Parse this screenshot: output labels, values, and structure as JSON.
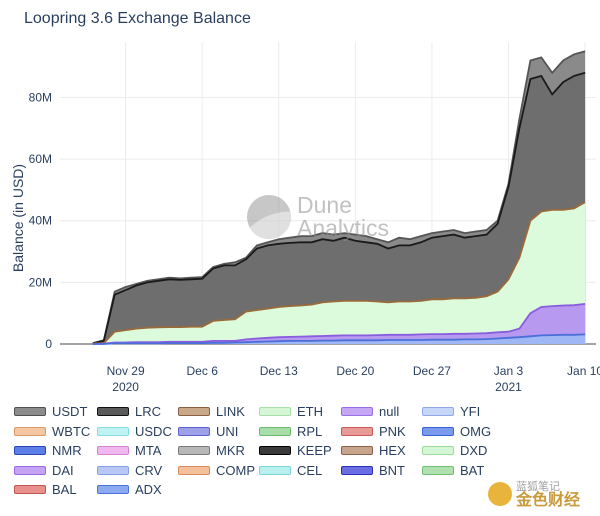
{
  "title": "Loopring 3.6 Exchange Balance",
  "watermarks": {
    "dune_line1": "Dune",
    "dune_line2": "Analytics",
    "cn_line1": "蓝狐笔记",
    "cn_line2": "金色财经"
  },
  "chart_data": {
    "type": "area",
    "title": "Loopring 3.6 Exchange Balance",
    "ylabel": "Balance (in USD)",
    "xlabel": "",
    "y_unit": "M",
    "ylim": [
      0,
      98
    ],
    "xlim": [
      "2020-11-23",
      "2021-01-11"
    ],
    "x_ticks": [
      {
        "date": "2020-11-29",
        "line1": "Nov 29",
        "line2": "2020"
      },
      {
        "date": "2020-12-06",
        "line1": "Dec 6",
        "line2": ""
      },
      {
        "date": "2020-12-13",
        "line1": "Dec 13",
        "line2": ""
      },
      {
        "date": "2020-12-20",
        "line1": "Dec 20",
        "line2": ""
      },
      {
        "date": "2020-12-27",
        "line1": "Dec 27",
        "line2": ""
      },
      {
        "date": "2021-01-03",
        "line1": "Jan 3",
        "line2": "2021"
      },
      {
        "date": "2021-01-10",
        "line1": "Jan 10",
        "line2": ""
      }
    ],
    "y_ticks": [
      {
        "value": 0,
        "label": "0"
      },
      {
        "value": 20,
        "label": "20M"
      },
      {
        "value": 40,
        "label": "40M"
      },
      {
        "value": 60,
        "label": "60M"
      },
      {
        "value": 80,
        "label": "80M"
      }
    ],
    "x": [
      "2020-11-26",
      "2020-11-27",
      "2020-11-28",
      "2020-11-29",
      "2020-11-30",
      "2020-12-01",
      "2020-12-02",
      "2020-12-03",
      "2020-12-04",
      "2020-12-05",
      "2020-12-06",
      "2020-12-07",
      "2020-12-08",
      "2020-12-09",
      "2020-12-10",
      "2020-12-11",
      "2020-12-12",
      "2020-12-13",
      "2020-12-14",
      "2020-12-15",
      "2020-12-16",
      "2020-12-17",
      "2020-12-18",
      "2020-12-19",
      "2020-12-20",
      "2020-12-21",
      "2020-12-22",
      "2020-12-23",
      "2020-12-24",
      "2020-12-25",
      "2020-12-26",
      "2020-12-27",
      "2020-12-28",
      "2020-12-29",
      "2020-12-30",
      "2020-12-31",
      "2021-01-01",
      "2021-01-02",
      "2021-01-03",
      "2021-01-04",
      "2021-01-05",
      "2021-01-06",
      "2021-01-07",
      "2021-01-08",
      "2021-01-09",
      "2021-01-10"
    ],
    "series": [
      {
        "name": "USDT",
        "color": "#8a8a8a",
        "line": "#555555",
        "values": [
          0.3,
          1.2,
          17,
          18.5,
          19.5,
          20.5,
          21,
          21.5,
          21.3,
          21.5,
          21.7,
          25,
          26,
          26.5,
          28,
          32,
          33,
          34,
          34.5,
          35,
          35,
          36,
          35.5,
          36,
          35.5,
          35,
          34,
          33,
          34.5,
          34,
          35,
          36,
          36.5,
          37,
          36,
          36.5,
          37,
          40,
          52,
          73,
          92,
          93,
          88,
          92,
          94,
          95
        ]
      },
      {
        "name": "LRC",
        "color": "#6e6e6e",
        "line": "#1a1a1a",
        "values": [
          0.3,
          1,
          16,
          17.5,
          19,
          20,
          20.5,
          21,
          20.8,
          21,
          21.2,
          24.5,
          25.5,
          25.5,
          27.5,
          31,
          32,
          32.5,
          32.8,
          33,
          33,
          34,
          33.5,
          34.5,
          33.5,
          33,
          32.5,
          31,
          32,
          32,
          33,
          34.5,
          35,
          35.5,
          34.5,
          35,
          35.5,
          39,
          51,
          70,
          86,
          87,
          81,
          85,
          87,
          88
        ]
      },
      {
        "name": "ETH",
        "color": "#dcfadc",
        "line": "#9a6a3a",
        "values": [
          0.2,
          0.3,
          4,
          4.5,
          5,
          5.3,
          5.4,
          5.5,
          5.5,
          5.6,
          5.6,
          7.5,
          7.8,
          8,
          10.5,
          11,
          11.5,
          12,
          12.3,
          12.5,
          12.8,
          13.5,
          13.8,
          14,
          14,
          14,
          13.8,
          13.5,
          13.8,
          13.8,
          14,
          14.5,
          14.5,
          14.8,
          14.8,
          15,
          15.5,
          17,
          21,
          28,
          40,
          43,
          43.5,
          43.5,
          44,
          46
        ]
      },
      {
        "name": "null",
        "color": "#b79af0",
        "line": "#8a5ce0",
        "values": [
          0,
          0.1,
          0.5,
          0.5,
          0.6,
          0.6,
          0.6,
          0.7,
          0.7,
          0.7,
          0.7,
          1,
          1,
          1,
          1.5,
          1.8,
          2,
          2.2,
          2.3,
          2.4,
          2.5,
          2.6,
          2.7,
          2.8,
          2.8,
          2.8,
          2.9,
          3,
          3,
          3,
          3.1,
          3.2,
          3.2,
          3.3,
          3.3,
          3.4,
          3.5,
          3.8,
          4,
          5,
          10,
          12,
          12.3,
          12.5,
          12.6,
          13
        ]
      },
      {
        "name": "OMG",
        "color": "#9fb7f5",
        "line": "#4a6fd8",
        "values": [
          0,
          0,
          0.2,
          0.2,
          0.2,
          0.2,
          0.2,
          0.3,
          0.3,
          0.3,
          0.3,
          0.4,
          0.4,
          0.5,
          0.6,
          0.7,
          0.8,
          0.9,
          1,
          1,
          1,
          1.1,
          1.1,
          1.2,
          1.2,
          1.2,
          1.2,
          1.3,
          1.3,
          1.3,
          1.3,
          1.4,
          1.4,
          1.4,
          1.5,
          1.5,
          1.6,
          1.8,
          2,
          2.2,
          2.5,
          2.8,
          2.9,
          3,
          3,
          3.1
        ]
      }
    ],
    "legend": [
      {
        "name": "USDT",
        "fill": "#8c8c8c",
        "border": "#505050"
      },
      {
        "name": "LRC",
        "fill": "#5a5a5a",
        "border": "#111111"
      },
      {
        "name": "LINK",
        "fill": "#c8a888",
        "border": "#8a6040"
      },
      {
        "name": "ETH",
        "fill": "#d6f7d6",
        "border": "#a6e0a6"
      },
      {
        "name": "null",
        "fill": "#c4a8f4",
        "border": "#9a6ee8"
      },
      {
        "name": "YFI",
        "fill": "#c6d6f8",
        "border": "#90a8e8"
      },
      {
        "name": "WBTC",
        "fill": "#f4c7a2",
        "border": "#d8986a"
      },
      {
        "name": "USDC",
        "fill": "#bff2f2",
        "border": "#88dcdc"
      },
      {
        "name": "UNI",
        "fill": "#9ea0e8",
        "border": "#5c60d0"
      },
      {
        "name": "RPL",
        "fill": "#a8dca8",
        "border": "#6cbc6c"
      },
      {
        "name": "PNK",
        "fill": "#e89a96",
        "border": "#c85a55"
      },
      {
        "name": "OMG",
        "fill": "#7c9aec",
        "border": "#3a62d6"
      },
      {
        "name": "NMR",
        "fill": "#5c7ee6",
        "border": "#2848b8"
      },
      {
        "name": "MTA",
        "fill": "#f0b8ee",
        "border": "#d484d0"
      },
      {
        "name": "MKR",
        "fill": "#b8b8b8",
        "border": "#7a7a7a"
      },
      {
        "name": "KEEP",
        "fill": "#3a3a3a",
        "border": "#000000"
      },
      {
        "name": "HEX",
        "fill": "#c8a48c",
        "border": "#8a6448"
      },
      {
        "name": "DXD",
        "fill": "#d4f6d4",
        "border": "#9cdc9c"
      },
      {
        "name": "DAI",
        "fill": "#c4a4f2",
        "border": "#9a6ae6"
      },
      {
        "name": "CRV",
        "fill": "#b8c8f6",
        "border": "#86a0e6"
      },
      {
        "name": "COMP",
        "fill": "#f4c09c",
        "border": "#d88c5a"
      },
      {
        "name": "CEL",
        "fill": "#b8f0f0",
        "border": "#7cd6d6"
      },
      {
        "name": "BNT",
        "fill": "#6a6ee2",
        "border": "#2c30b8"
      },
      {
        "name": "BAT",
        "fill": "#b0e0b0",
        "border": "#70c070"
      },
      {
        "name": "BAL",
        "fill": "#e8908c",
        "border": "#c05450"
      },
      {
        "name": "ADX",
        "fill": "#8caaf0",
        "border": "#4a72d8"
      }
    ]
  }
}
